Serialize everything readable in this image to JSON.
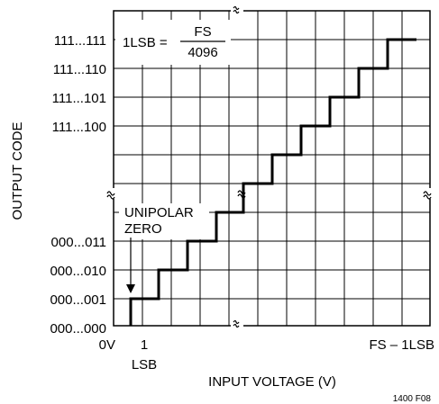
{
  "figure": {
    "id_label": "1400 F08"
  },
  "axes": {
    "ylabel": "OUTPUT CODE",
    "xlabel": "INPUT VOLTAGE (V)",
    "y_ticks": [
      "111...111",
      "111...110",
      "111...101",
      "111...100",
      "000...011",
      "000...010",
      "000...001",
      "000...000"
    ],
    "x_ticks": {
      "origin": "0V",
      "one": "1",
      "one_unit": "LSB",
      "end": "FS – 1LSB"
    }
  },
  "annotations": {
    "lsb_lhs": "1LSB =",
    "lsb_num": "FS",
    "lsb_den": "4096",
    "zero_line1": "UNIPOLAR",
    "zero_line2": "ZERO"
  }
}
